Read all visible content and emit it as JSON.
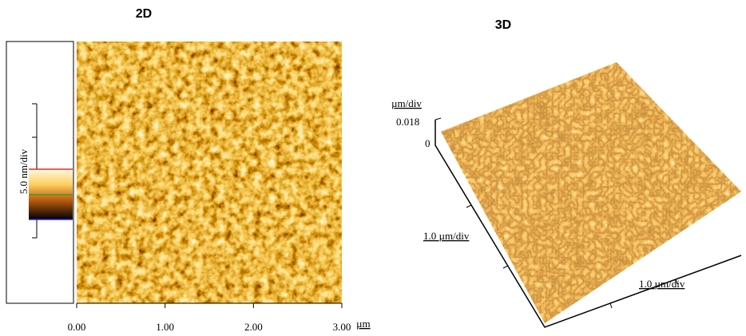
{
  "panel_2d": {
    "title": "2D",
    "scale_label": "5.0 nm/div",
    "x_ticks": [
      "0.00",
      "1.00",
      "2.00",
      "3.00"
    ],
    "x_unit": "µm"
  },
  "panel_3d": {
    "title": "3D",
    "z_unit": "µm/div",
    "z_max": "0.018",
    "z_min": "0",
    "left_axis_label": "1.0 µm/div",
    "bottom_axis_label": "1.0 µm/div"
  }
}
